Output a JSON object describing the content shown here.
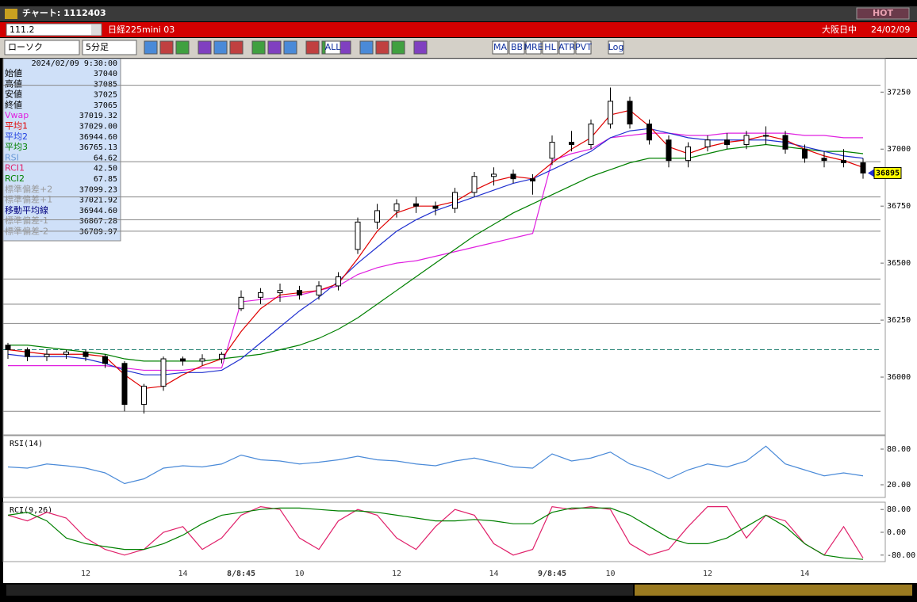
{
  "window": {
    "title": "チャート: 1112403",
    "hot": "HOT"
  },
  "header": {
    "code": "111.2",
    "name": "日経225mini 03",
    "market": "大阪日中",
    "date": "24/02/09"
  },
  "toolbar": {
    "chart_type": "ローソク",
    "interval": "5分足",
    "buttons": [
      "ALL",
      "MA",
      "BB",
      "MRE",
      "HL",
      "ATR",
      "PVT",
      "Log"
    ]
  },
  "info": {
    "time": "2024/02/09 9:30:00",
    "rows": [
      [
        "始値",
        "37040",
        "#000"
      ],
      [
        "高値",
        "37085",
        "#000"
      ],
      [
        "安値",
        "37025",
        "#000"
      ],
      [
        "終値",
        "37065",
        "#000"
      ],
      [
        "Vwap",
        "37019.32",
        "#e020e0"
      ],
      [
        "平均1",
        "37029.00",
        "#e00000"
      ],
      [
        "平均2",
        "36944.60",
        "#2040e0"
      ],
      [
        "平均3",
        "36765.13",
        "#008000"
      ],
      [
        "RSI",
        "64.62",
        "#6a9ad8"
      ],
      [
        "RCI1",
        "42.50",
        "#e0206a"
      ],
      [
        "RCI2",
        "67.85",
        "#008000"
      ],
      [
        "標準偏差+2",
        "37099.23",
        "#999"
      ],
      [
        "標準偏差+1",
        "37021.92",
        "#999"
      ],
      [
        "移動平均線",
        "36944.60",
        "#000080"
      ],
      [
        "標準偏差-1",
        "36867.28",
        "#999"
      ],
      [
        "標準偏差-2",
        "36789.97",
        "#999"
      ]
    ]
  },
  "chart_data": [
    {
      "type": "candlestick",
      "ylim": [
        35750,
        37390
      ],
      "yticks": [
        36000,
        36250,
        36500,
        36750,
        37000,
        37250
      ],
      "categories": [
        null,
        null,
        null,
        null,
        "12",
        null,
        null,
        null,
        null,
        "14",
        null,
        null,
        "8/8:45",
        null,
        null,
        "10",
        null,
        null,
        null,
        null,
        "12",
        null,
        null,
        null,
        null,
        "14",
        null,
        null,
        "9/8:45",
        null,
        null,
        "10",
        null,
        null,
        null,
        null,
        "12",
        null,
        null,
        null,
        null,
        "14",
        null,
        null,
        null
      ],
      "open": [
        36140,
        36120,
        36090,
        36100,
        36110,
        36090,
        36060,
        35880,
        35960,
        36080,
        36070,
        36080,
        36300,
        36350,
        36370,
        36380,
        36360,
        36400,
        36560,
        36680,
        36730,
        36760,
        36750,
        36740,
        36810,
        36880,
        36890,
        36870,
        36960,
        37030,
        37020,
        37110,
        37210,
        37110,
        37040,
        36950,
        37010,
        37040,
        37020,
        37060,
        37060,
        37000,
        36960,
        36950,
        36940
      ],
      "high": [
        36150,
        36130,
        36120,
        36120,
        36120,
        36100,
        36070,
        35970,
        36090,
        36090,
        36100,
        36110,
        36380,
        36390,
        36410,
        36400,
        36420,
        36460,
        36700,
        36760,
        36780,
        36790,
        36770,
        36830,
        36900,
        36920,
        36910,
        36890,
        37060,
        37080,
        37130,
        37270,
        37230,
        37130,
        37060,
        37030,
        37060,
        37070,
        37080,
        37100,
        37080,
        37020,
        36990,
        37000,
        36960
      ],
      "low": [
        36080,
        36070,
        36070,
        36080,
        36070,
        36040,
        35850,
        35840,
        35940,
        36050,
        36050,
        36060,
        36290,
        36320,
        36330,
        36340,
        36340,
        36380,
        36540,
        36650,
        36700,
        36720,
        36710,
        36720,
        36790,
        36840,
        36850,
        36800,
        36930,
        36990,
        37000,
        37090,
        37090,
        37020,
        36920,
        36920,
        36990,
        37000,
        37000,
        37020,
        36980,
        36940,
        36920,
        36920,
        36870
      ],
      "close": [
        36120,
        36090,
        36100,
        36110,
        36090,
        36060,
        35880,
        35960,
        36080,
        36070,
        36080,
        36100,
        36350,
        36370,
        36380,
        36360,
        36400,
        36440,
        36680,
        36730,
        36760,
        36750,
        36740,
        36810,
        36880,
        36890,
        36870,
        36860,
        37030,
        37020,
        37110,
        37210,
        37110,
        37040,
        36950,
        37010,
        37040,
        37020,
        37060,
        37060,
        37000,
        36960,
        36950,
        36940,
        36895
      ],
      "series": [
        {
          "color": "#e020e0",
          "values": [
            36050,
            36050,
            36050,
            36050,
            36050,
            36050,
            36040,
            36030,
            36030,
            36030,
            36040,
            36040,
            36330,
            36340,
            36350,
            36360,
            36380,
            36400,
            36450,
            36480,
            36500,
            36510,
            36530,
            36550,
            36570,
            36590,
            36610,
            36630,
            36950,
            36980,
            37000,
            37050,
            37060,
            37070,
            37070,
            37060,
            37060,
            37070,
            37070,
            37070,
            37070,
            37060,
            37060,
            37050,
            37050
          ]
        },
        {
          "color": "#008000",
          "values": [
            36140,
            36140,
            36130,
            36120,
            36110,
            36100,
            36080,
            36070,
            36070,
            36070,
            36070,
            36080,
            36090,
            36100,
            36120,
            36140,
            36170,
            36210,
            36260,
            36320,
            36380,
            36440,
            36500,
            36560,
            36620,
            36670,
            36720,
            36760,
            36800,
            36840,
            36880,
            36910,
            36940,
            36960,
            36960,
            36960,
            36980,
            37000,
            37010,
            37020,
            37010,
            37000,
            36990,
            36990,
            36980
          ]
        },
        {
          "color": "#2030d0",
          "values": [
            36100,
            36090,
            36090,
            36090,
            36080,
            36060,
            36030,
            36010,
            36010,
            36020,
            36020,
            36030,
            36080,
            36150,
            36220,
            36290,
            36350,
            36420,
            36500,
            36570,
            36640,
            36690,
            36730,
            36760,
            36790,
            36820,
            36850,
            36870,
            36910,
            36950,
            36990,
            37050,
            37080,
            37090,
            37070,
            37050,
            37040,
            37040,
            37040,
            37040,
            37030,
            37010,
            36990,
            36970,
            36960
          ]
        },
        {
          "color": "#e00000",
          "values": [
            36120,
            36110,
            36100,
            36100,
            36100,
            36090,
            36010,
            35950,
            35960,
            36010,
            36050,
            36080,
            36200,
            36300,
            36360,
            36370,
            36380,
            36410,
            36520,
            36640,
            36720,
            36750,
            36750,
            36770,
            36820,
            36860,
            36880,
            36870,
            36940,
            37000,
            37050,
            37150,
            37170,
            37100,
            37010,
            36980,
            37010,
            37030,
            37040,
            37060,
            37040,
            37000,
            36970,
            36950,
            36920
          ]
        }
      ],
      "hlines": [
        37280,
        36945,
        36790,
        36690,
        36640,
        36430,
        36320,
        36235,
        35850
      ],
      "hline_dashed": 36120
    },
    {
      "type": "line",
      "title": "RSI(14)",
      "ylim": [
        0,
        100
      ],
      "yticks": [
        {
          "value": 80,
          "label": "80.00"
        },
        {
          "value": 20,
          "label": "20.00"
        }
      ],
      "series": [
        {
          "color": "#4a8ad8",
          "values": [
            50,
            48,
            55,
            52,
            48,
            40,
            22,
            30,
            48,
            52,
            50,
            55,
            70,
            62,
            60,
            55,
            58,
            62,
            68,
            62,
            60,
            55,
            52,
            60,
            65,
            58,
            50,
            48,
            72,
            60,
            65,
            75,
            55,
            45,
            30,
            45,
            55,
            50,
            60,
            85,
            55,
            45,
            35,
            40,
            35
          ]
        }
      ]
    },
    {
      "type": "line",
      "title": "RCI(9,26)",
      "ylim": [
        -100,
        100
      ],
      "yticks": [
        {
          "value": 80,
          "label": "80.00"
        },
        {
          "value": 0,
          "label": "0.00"
        },
        {
          "value": -80,
          "label": "-80.00"
        }
      ],
      "series": [
        {
          "color": "#e0206a",
          "values": [
            60,
            40,
            70,
            50,
            -20,
            -60,
            -80,
            -60,
            0,
            20,
            -60,
            -20,
            60,
            90,
            80,
            -20,
            -60,
            40,
            80,
            60,
            -20,
            -60,
            20,
            80,
            60,
            -40,
            -80,
            -60,
            90,
            80,
            90,
            80,
            -40,
            -80,
            -60,
            20,
            90,
            90,
            -20,
            60,
            40,
            -40,
            -80,
            20,
            -90
          ]
        },
        {
          "color": "#008000",
          "values": [
            60,
            70,
            40,
            -20,
            -40,
            -50,
            -60,
            -60,
            -40,
            -10,
            30,
            60,
            70,
            80,
            85,
            85,
            80,
            75,
            75,
            70,
            60,
            50,
            40,
            40,
            45,
            40,
            30,
            30,
            70,
            85,
            85,
            85,
            60,
            20,
            -20,
            -40,
            -40,
            -20,
            20,
            60,
            20,
            -40,
            -80,
            -90,
            -95
          ]
        }
      ]
    }
  ]
}
